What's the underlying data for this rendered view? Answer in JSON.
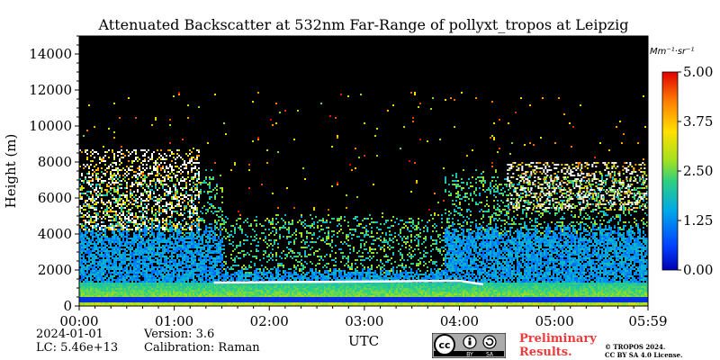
{
  "chart_data": {
    "type": "heatmap",
    "title": "Attenuated Backscatter at 532nm Far-Range of pollyxt_tropos at Leipzig",
    "xlabel": "UTC",
    "ylabel": "Height (m)",
    "xlim": [
      "00:00",
      "05:59"
    ],
    "x_ticks": [
      "00:00",
      "01:00",
      "02:00",
      "03:00",
      "04:00",
      "05:00",
      "05:59"
    ],
    "ylim": [
      0,
      15000
    ],
    "y_ticks": [
      0,
      2000,
      4000,
      6000,
      8000,
      10000,
      12000,
      14000
    ],
    "colorbar": {
      "unit": "Mm⁻¹·sr⁻¹",
      "range": [
        0.0,
        5.0
      ],
      "ticks": [
        "0.00",
        "1.25",
        "2.50",
        "3.75",
        "5.00"
      ],
      "colormap": "jet"
    },
    "background_color": "#000000",
    "features": {
      "boundary_layer_top_m": 1400,
      "cloud_layer_early": {
        "time_start": "00:00",
        "time_end": "01:15",
        "base_m": 4200,
        "top_m": 8700
      },
      "cloud_layer_late": {
        "time_start": "04:30",
        "time_end": "05:59",
        "base_m": 5300,
        "top_m": 8000
      }
    }
  },
  "footer": {
    "date": "2024-01-01",
    "lc": "LC: 5.46e+13",
    "version": "Version: 3.6",
    "calibration": "Calibration: Raman",
    "preliminary_line1": "Preliminary",
    "preliminary_line2": "Results.",
    "copyright_line1": "© TROPOS 2024.",
    "copyright_line2": "CC BY SA 4.0 License.",
    "cc_text": "cc",
    "by_text": "BY",
    "sa_text": "SA"
  }
}
